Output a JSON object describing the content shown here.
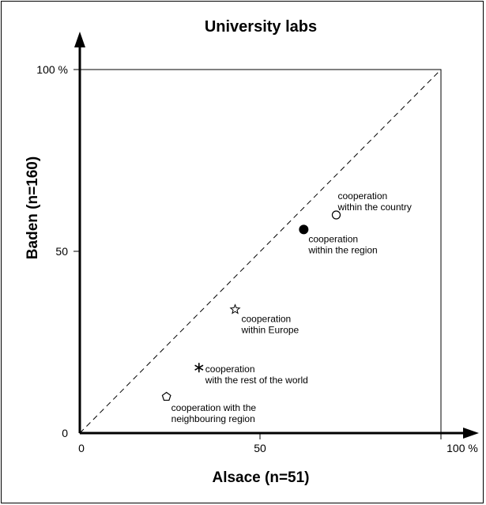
{
  "chart_data": {
    "type": "scatter",
    "title": "University labs",
    "xlabel": "Alsace (n=51)",
    "ylabel": "Baden (n=160)",
    "xlim": [
      0,
      100
    ],
    "ylim": [
      0,
      100
    ],
    "x_ticks": [
      "0",
      "50",
      "100 %"
    ],
    "y_ticks": [
      "0",
      "50",
      "100 %"
    ],
    "reference_line": "diagonal",
    "grid": false,
    "points": [
      {
        "label_lines": [
          "cooperation",
          "within the country"
        ],
        "x": 71,
        "y": 60,
        "marker": "open-circle"
      },
      {
        "label_lines": [
          "cooperation",
          "within the region"
        ],
        "x": 62,
        "y": 56,
        "marker": "filled-circle"
      },
      {
        "label_lines": [
          "cooperation",
          "within Europe"
        ],
        "x": 43,
        "y": 34,
        "marker": "star"
      },
      {
        "label_lines": [
          "cooperation",
          "with the rest of the world"
        ],
        "x": 33,
        "y": 18,
        "marker": "asterisk"
      },
      {
        "label_lines": [
          "cooperation with the",
          "neighbouring region"
        ],
        "x": 24,
        "y": 10,
        "marker": "pentagon"
      }
    ]
  }
}
